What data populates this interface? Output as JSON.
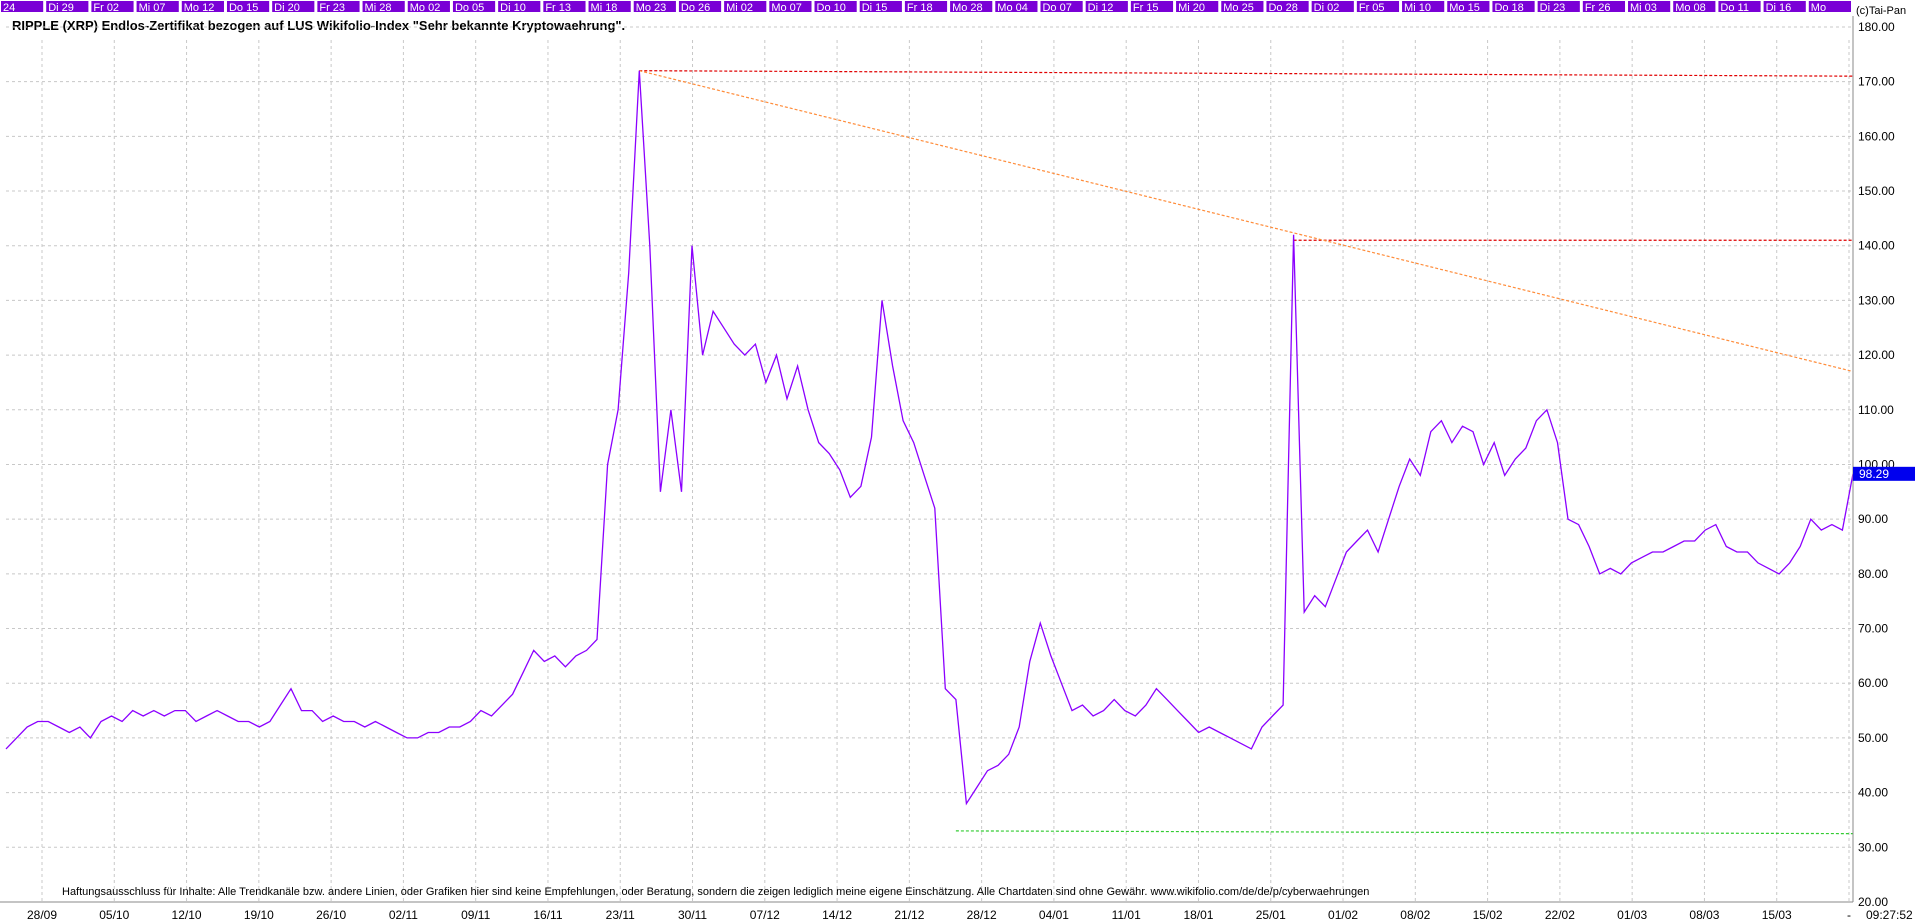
{
  "colors": {
    "price_line": "#8b00ff",
    "day_bar": "#7a00d6",
    "resistance": "#e00000",
    "trend": "#ff8c3a",
    "support": "#33cc33",
    "grid": "#c8c8c8",
    "last_badge": "#0000ee"
  },
  "header": {
    "title": "RIPPLE (XRP) Endlos-Zertifikat bezogen auf LUS Wikifolio-Index \"Sehr bekannte Kryptowaehrung\".",
    "copyright": "(c)Tai-Pan"
  },
  "day_labels": [
    "24",
    "Di 29",
    "Fr 02",
    "Mi 07",
    "Mo 12",
    "Do 15",
    "Di 20",
    "Fr 23",
    "Mi 28",
    "Mo 02",
    "Do 05",
    "Di 10",
    "Fr 13",
    "Mi 18",
    "Mo 23",
    "Do 26",
    "Mi 02",
    "Mo 07",
    "Do 10",
    "Di 15",
    "Fr 18",
    "Mo 28",
    "Mo 04",
    "Do 07",
    "Di 12",
    "Fr 15",
    "Mi 20",
    "Mo 25",
    "Do 28",
    "Di 02",
    "Fr 05",
    "Mi 10",
    "Mo 15",
    "Do 18",
    "Di 23",
    "Fr 26",
    "Mi 03",
    "Mo 08",
    "Do 11",
    "Di 16",
    "Mo"
  ],
  "disclaimer": "Haftungsausschluss für Inhalte: Alle Trendkanäle bzw. andere Linien, oder Grafiken hier sind keine Empfehlungen, oder Beratung, sondern die zeigen lediglich meine eigene Einschätzung. Alle Chartdaten sind ohne Gewähr.  www.wikifolio.com/de/de/p/cyberwaehrungen",
  "time_label": "09:27:52",
  "chart_data": {
    "type": "line",
    "title": "RIPPLE (XRP) Endlos-Zertifikat bezogen auf LUS Wikifolio-Index \"Sehr bekannte Kryptowaehrung\".",
    "x_tick_labels": [
      "28/09",
      "05/10",
      "12/10",
      "19/10",
      "26/10",
      "02/11",
      "09/11",
      "16/11",
      "23/11",
      "30/11",
      "07/12",
      "14/12",
      "21/12",
      "28/12",
      "04/01",
      "11/01",
      "18/01",
      "25/01",
      "01/02",
      "08/02",
      "15/02",
      "22/02",
      "01/03",
      "08/03",
      "15/03",
      "-"
    ],
    "ylim": [
      20,
      182
    ],
    "y_ticks": [
      20,
      30,
      40,
      50,
      60,
      70,
      80,
      90,
      100,
      110,
      120,
      130,
      140,
      150,
      160,
      170,
      180
    ],
    "y_tick_labels": [
      "20.00",
      "30.00",
      "40.00",
      "50.00",
      "60.00",
      "70.00",
      "80.00",
      "90.00",
      "100.00",
      "110.00",
      "120.00",
      "130.00",
      "140.00",
      "150.00",
      "160.00",
      "170.00",
      "180.00"
    ],
    "last_value": 98.29,
    "last_value_label": "98.29",
    "grid": true,
    "series": [
      {
        "x": [
          0,
          1,
          2,
          3,
          4,
          5,
          6,
          7,
          8,
          9,
          10,
          11,
          12,
          13,
          14,
          15,
          16,
          17,
          18,
          19,
          20,
          21,
          22,
          23,
          24,
          25,
          26,
          27,
          28,
          29,
          30,
          31,
          32,
          33,
          34,
          35,
          36,
          37,
          38,
          39,
          40,
          41,
          42,
          43,
          44,
          45,
          46,
          47,
          48,
          49,
          50,
          51,
          52,
          53,
          54,
          55,
          56,
          57,
          58,
          59,
          60,
          61,
          62,
          63,
          64,
          65,
          66,
          67,
          68,
          69,
          70,
          71,
          72,
          73,
          74,
          75,
          76,
          77,
          78,
          79,
          80,
          81,
          82,
          83,
          84,
          85,
          86,
          87,
          88,
          89,
          90,
          91,
          92,
          93,
          94,
          95,
          96,
          97,
          98,
          99,
          100,
          101,
          102,
          103,
          104,
          105,
          106,
          107,
          108,
          109,
          110,
          111,
          112,
          113,
          114,
          115,
          116,
          117,
          118,
          119,
          120,
          121,
          122,
          123,
          124,
          125,
          126,
          127,
          128,
          129,
          130,
          131,
          132,
          133,
          134,
          135,
          136,
          137,
          138,
          139,
          140,
          141,
          142,
          143,
          144,
          145,
          146,
          147,
          148,
          149,
          150,
          151,
          152,
          153,
          154,
          155,
          156,
          157,
          158,
          159,
          160,
          161,
          162,
          163,
          164,
          165,
          166,
          167,
          168,
          169,
          170,
          171,
          172,
          173,
          174,
          175
        ],
        "values": [
          48,
          50,
          52,
          53,
          53,
          52,
          51,
          52,
          50,
          53,
          54,
          53,
          55,
          54,
          55,
          54,
          55,
          55,
          53,
          54,
          55,
          54,
          53,
          53,
          52,
          53,
          56,
          59,
          55,
          55,
          53,
          54,
          53,
          53,
          52,
          53,
          52,
          51,
          50,
          50,
          51,
          51,
          52,
          52,
          53,
          55,
          54,
          56,
          58,
          62,
          66,
          64,
          65,
          63,
          65,
          66,
          68,
          100,
          110,
          135,
          172,
          140,
          95,
          110,
          95,
          140,
          120,
          128,
          125,
          122,
          120,
          122,
          115,
          120,
          112,
          118,
          110,
          104,
          102,
          99,
          94,
          96,
          105,
          130,
          118,
          108,
          104,
          98,
          92,
          59,
          57,
          38,
          41,
          44,
          45,
          47,
          52,
          64,
          71,
          65,
          60,
          55,
          56,
          54,
          55,
          57,
          55,
          54,
          56,
          59,
          57,
          55,
          53,
          51,
          52,
          51,
          50,
          49,
          48,
          52,
          54,
          56,
          142,
          73,
          76,
          74,
          79,
          84,
          86,
          88,
          84,
          90,
          96,
          101,
          98,
          106,
          108,
          104,
          107,
          106,
          100,
          104,
          98,
          101,
          103,
          108,
          110,
          104,
          90,
          89,
          85,
          80,
          81,
          80,
          82,
          83,
          84,
          84,
          85,
          86,
          86,
          88,
          89,
          85,
          84,
          84,
          82,
          81,
          80,
          82,
          85,
          90,
          88,
          89,
          88,
          98.29
        ]
      }
    ],
    "lines": [
      {
        "kind": "resistance",
        "from": [
          60,
          172
        ],
        "to": [
          175,
          171
        ]
      },
      {
        "kind": "resistance",
        "from": [
          122,
          141
        ],
        "to": [
          175,
          141
        ]
      },
      {
        "kind": "trend",
        "from": [
          60,
          172
        ],
        "to": [
          175,
          117
        ]
      },
      {
        "kind": "support",
        "from": [
          90,
          33
        ],
        "to": [
          175,
          32.5
        ]
      }
    ]
  }
}
